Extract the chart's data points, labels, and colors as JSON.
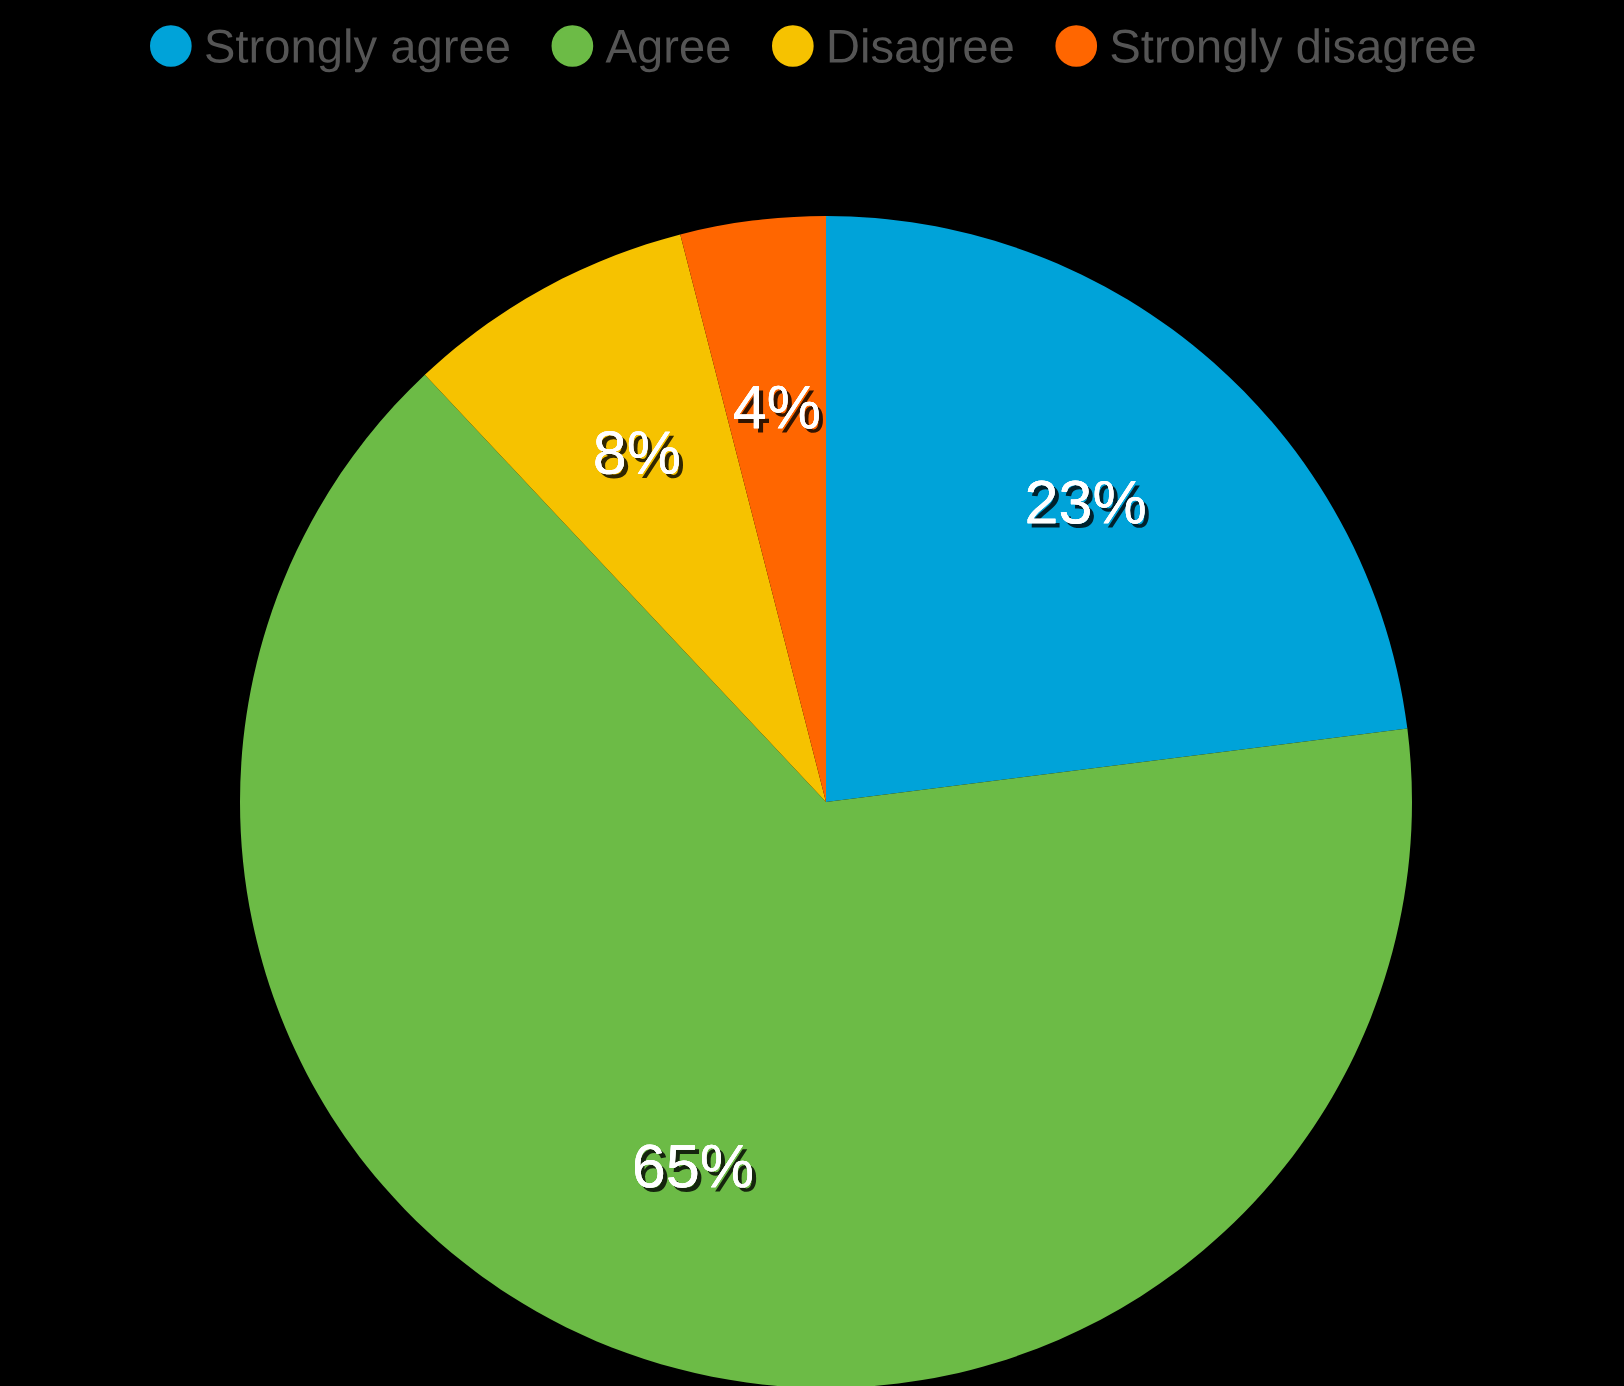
{
  "chart_data": {
    "type": "pie",
    "categories": [
      "Strongly agree",
      "Agree",
      "Disagree",
      "Strongly disagree"
    ],
    "values": [
      23,
      65,
      8,
      4
    ],
    "colors": [
      "#00a3d9",
      "#6cbb46",
      "#f6c200",
      "#ff6600"
    ],
    "value_labels": [
      "23%",
      "65%",
      "8%",
      "4%"
    ],
    "legend": "top"
  }
}
